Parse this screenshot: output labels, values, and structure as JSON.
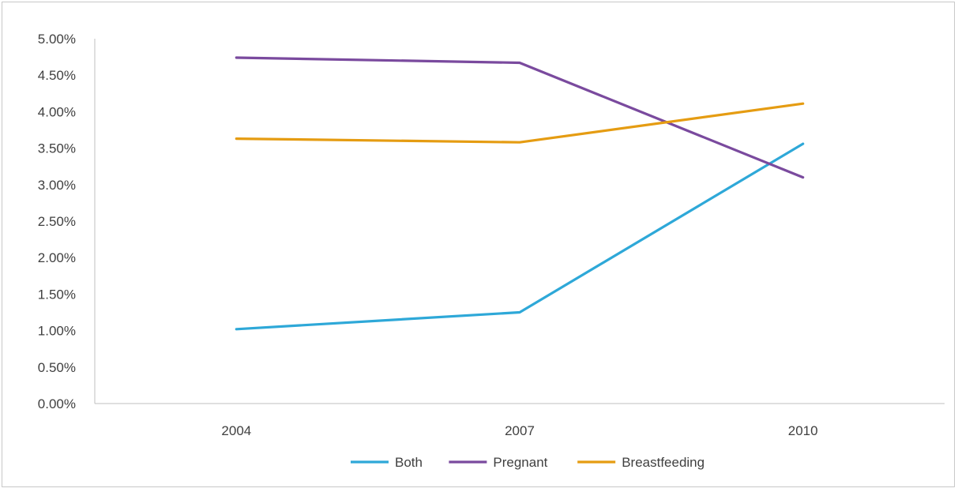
{
  "chart_data": {
    "type": "line",
    "categories": [
      "2004",
      "2007",
      "2010"
    ],
    "ylim": [
      0,
      0.05
    ],
    "yticks": [
      0,
      0.005,
      0.01,
      0.015,
      0.02,
      0.025,
      0.03,
      0.035,
      0.04,
      0.045,
      0.05
    ],
    "ytick_labels": [
      "0.00%",
      "0.50%",
      "1.00%",
      "1.50%",
      "2.00%",
      "2.50%",
      "3.00%",
      "3.50%",
      "4.00%",
      "4.50%",
      "5.00%"
    ],
    "grid": false,
    "legend_position": "bottom",
    "series": [
      {
        "name": "Both",
        "color": "#2ea8d8",
        "values": [
          0.0102,
          0.0125,
          0.0356
        ]
      },
      {
        "name": "Pregnant",
        "color": "#7a4a9e",
        "values": [
          0.0474,
          0.0467,
          0.031
        ]
      },
      {
        "name": "Breastfeeding",
        "color": "#e59c12",
        "values": [
          0.0363,
          0.0358,
          0.0411
        ]
      }
    ]
  }
}
